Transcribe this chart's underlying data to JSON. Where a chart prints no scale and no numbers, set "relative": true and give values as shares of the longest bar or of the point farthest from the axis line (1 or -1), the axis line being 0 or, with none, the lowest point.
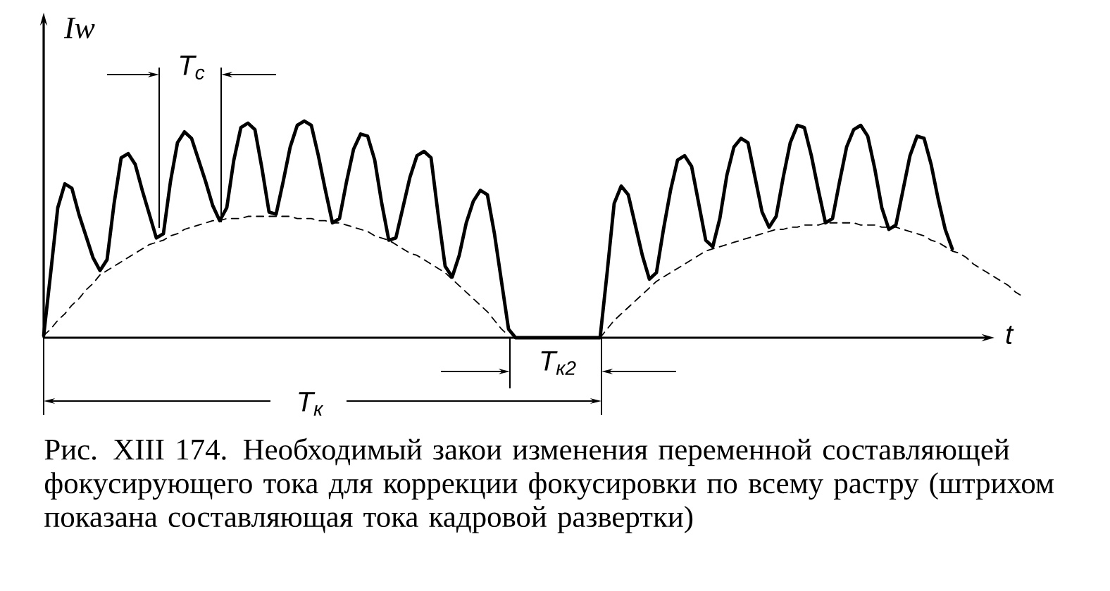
{
  "chart_data": {
    "type": "line",
    "relative": true,
    "xlabel": "t",
    "ylabel": "Iw",
    "marker": "none",
    "categories": [
      null,
      null,
      null,
      null,
      null,
      null,
      null,
      null,
      null,
      null,
      null,
      null,
      null,
      null,
      null,
      null,
      null,
      null,
      null,
      null,
      null,
      null,
      null,
      null,
      null,
      null,
      null,
      null,
      null,
      null,
      null,
      null,
      null,
      null,
      null,
      null,
      null,
      null,
      null,
      null,
      null,
      null,
      null,
      null,
      null,
      null,
      null,
      null,
      null,
      null,
      null,
      null,
      null,
      null,
      null,
      null,
      null,
      null,
      null,
      null,
      null,
      null,
      null,
      null,
      null,
      null,
      null,
      null,
      null,
      null,
      null,
      null,
      null,
      null,
      null,
      null,
      null,
      null,
      null,
      null,
      null,
      null,
      null,
      null,
      null,
      null,
      null,
      null,
      null,
      null,
      null,
      null,
      null,
      null,
      null,
      null,
      null,
      null,
      null,
      null,
      null,
      null,
      null,
      null,
      null,
      null,
      null,
      null,
      null,
      null,
      null,
      null,
      null,
      null,
      null,
      null,
      null,
      null,
      null,
      null,
      null,
      null,
      null,
      null,
      null,
      null,
      null,
      null,
      null,
      null,
      null,
      null,
      null,
      null,
      null,
      null,
      null,
      null,
      null,
      null
    ],
    "series": [
      {
        "color": "#000000",
        "line_style": "solid",
        "values": [
          0.01,
          0.3,
          0.6,
          0.71,
          0.69,
          0.57,
          0.47,
          0.37,
          0.31,
          0.36,
          0.62,
          0.83,
          0.85,
          0.8,
          0.68,
          0.57,
          0.46,
          0.48,
          0.72,
          0.9,
          0.95,
          0.92,
          0.82,
          0.72,
          0.61,
          0.54,
          0.6,
          0.82,
          0.97,
          0.99,
          0.96,
          0.78,
          0.58,
          0.57,
          0.72,
          0.88,
          0.98,
          1,
          0.98,
          0.84,
          0.68,
          0.53,
          0.55,
          0.72,
          0.87,
          0.94,
          0.93,
          0.82,
          0.62,
          0.45,
          0.46,
          0.6,
          0.74,
          0.84,
          0.86,
          0.83,
          0.57,
          0.33,
          0.28,
          0.38,
          0.53,
          0.63,
          0.68,
          0.66,
          0.48,
          0.26,
          0.04,
          0,
          0,
          0,
          0,
          0,
          0,
          0,
          0,
          0,
          0,
          0,
          0,
          0,
          0.3,
          0.62,
          0.7,
          0.66,
          0.52,
          0.38,
          0.27,
          0.3,
          0.5,
          0.68,
          0.82,
          0.84,
          0.79,
          0.62,
          0.45,
          0.42,
          0.55,
          0.75,
          0.88,
          0.92,
          0.9,
          0.74,
          0.58,
          0.51,
          0.56,
          0.74,
          0.9,
          0.98,
          0.97,
          0.84,
          0.68,
          0.53,
          0.55,
          0.72,
          0.88,
          0.96,
          0.98,
          0.93,
          0.78,
          0.6,
          0.5,
          0.52,
          0.68,
          0.84,
          0.93,
          0.92,
          0.8,
          0.64,
          0.5,
          0.41,
          null,
          null,
          null,
          null,
          null,
          null,
          null,
          null,
          null,
          null
        ]
      },
      {
        "color": "#000000",
        "line_style": "dashed",
        "values": [
          0.01,
          0.04,
          0.08,
          0.11,
          0.15,
          0.18,
          0.22,
          0.25,
          0.29,
          0.31,
          0.33,
          0.35,
          0.37,
          0.39,
          0.41,
          0.43,
          0.44,
          0.45,
          0.47,
          0.48,
          0.5,
          0.51,
          0.52,
          0.53,
          0.54,
          0.54,
          0.55,
          0.55,
          0.55,
          0.56,
          0.56,
          0.56,
          0.56,
          0.56,
          0.56,
          0.56,
          0.55,
          0.55,
          0.55,
          0.54,
          0.54,
          0.53,
          0.53,
          0.52,
          0.51,
          0.5,
          0.49,
          0.47,
          0.46,
          0.45,
          0.43,
          0.41,
          0.39,
          0.38,
          0.36,
          0.34,
          0.32,
          0.3,
          0.27,
          0.24,
          0.21,
          0.18,
          0.15,
          0.12,
          0.08,
          0.04,
          0.01,
          null,
          null,
          null,
          null,
          null,
          null,
          null,
          null,
          null,
          null,
          null,
          null,
          0,
          0.04,
          0.08,
          0.11,
          0.14,
          0.17,
          0.2,
          0.23,
          0.26,
          0.28,
          0.3,
          0.32,
          0.34,
          0.36,
          0.38,
          0.4,
          0.41,
          0.42,
          0.43,
          0.44,
          0.45,
          0.46,
          0.47,
          0.48,
          0.49,
          0.5,
          0.5,
          0.51,
          0.51,
          0.52,
          0.52,
          0.52,
          0.53,
          0.53,
          0.53,
          0.53,
          0.53,
          0.52,
          0.52,
          0.52,
          0.51,
          0.51,
          0.51,
          0.5,
          0.49,
          0.48,
          0.47,
          0.45,
          0.44,
          0.42,
          0.4,
          0.39,
          0.37,
          0.34,
          0.32,
          0.3,
          0.28,
          0.26,
          0.24,
          0.21,
          0.19
        ]
      }
    ],
    "annotations": [
      "T$_{с}$",
      "T$_{к}$",
      "T$_{к2}$",
      "Рис. XIII 174. Необходимый закои изменения переменной составляющей фокусирующего тока для коррекции фокусировки по всему растру (штрихом показана составляющая тока кадровой развертки)"
    ]
  }
}
